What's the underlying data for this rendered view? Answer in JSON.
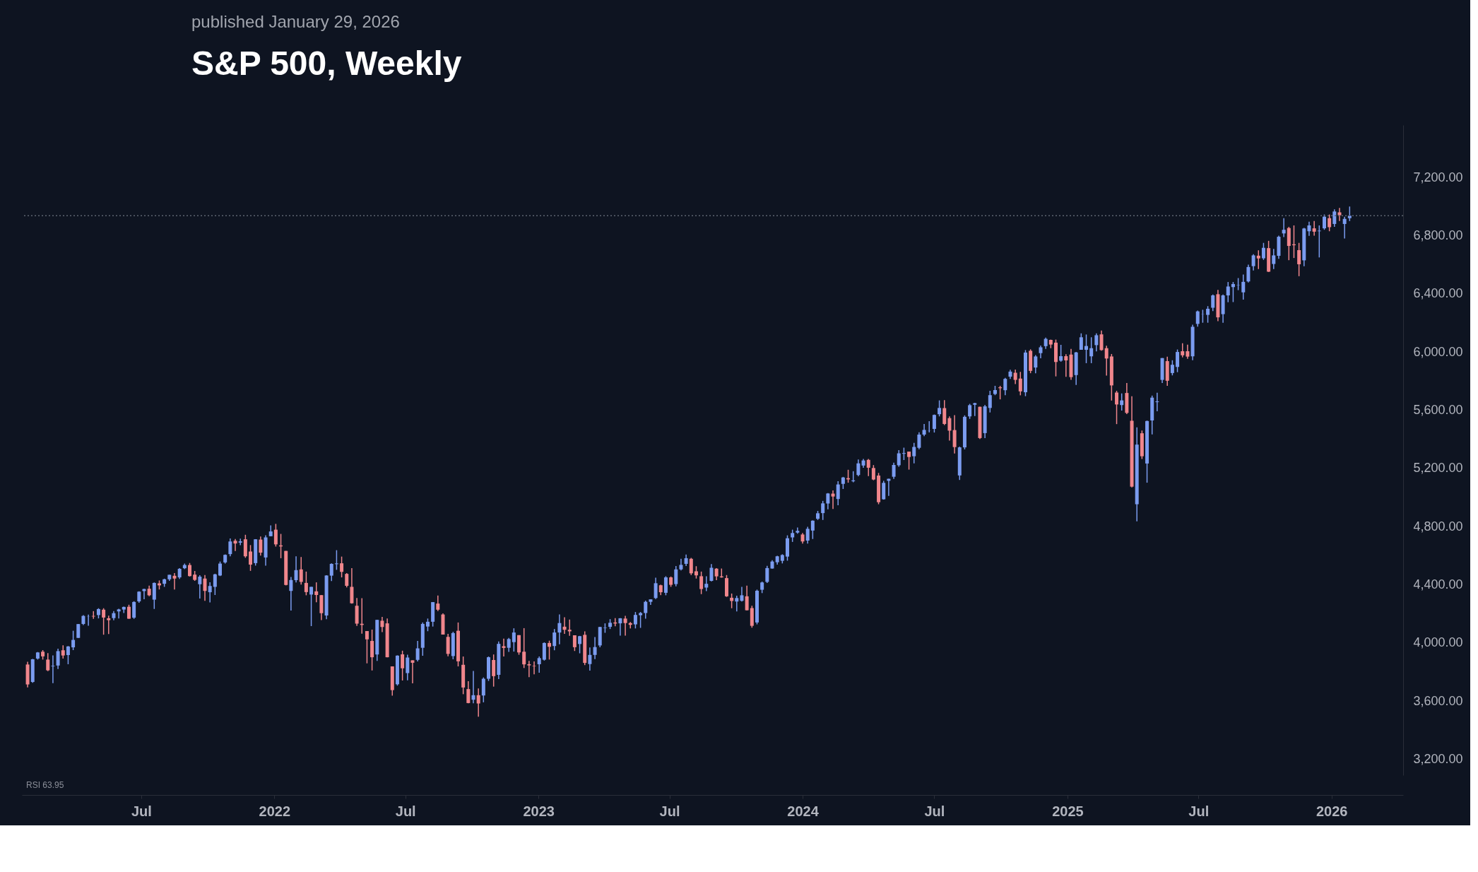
{
  "chart_data": {
    "type": "candlestick",
    "title": "S&P 500, Weekly",
    "subtitle": "published January 29, 2026",
    "annotations": [
      "RSI 63.95"
    ],
    "xlim": [
      "2021-01-22",
      "2026-04-05"
    ],
    "xticks": [
      {
        "value": "2021-07-01",
        "label": "Jul"
      },
      {
        "value": "2022-01-01",
        "label": "2022"
      },
      {
        "value": "2022-07-01",
        "label": "Jul"
      },
      {
        "value": "2023-01-01",
        "label": "2023"
      },
      {
        "value": "2023-07-01",
        "label": "Jul"
      },
      {
        "value": "2024-01-01",
        "label": "2024"
      },
      {
        "value": "2024-07-01",
        "label": "Jul"
      },
      {
        "value": "2025-01-01",
        "label": "2025"
      },
      {
        "value": "2025-07-01",
        "label": "Jul"
      },
      {
        "value": "2026-01-01",
        "label": "2026"
      }
    ],
    "ylim": [
      3090,
      7560
    ],
    "yticks": [
      {
        "value": 3200,
        "label": "3,200.00"
      },
      {
        "value": 3600,
        "label": "3,600.00"
      },
      {
        "value": 4000,
        "label": "4,000.00"
      },
      {
        "value": 4400,
        "label": "4,400.00"
      },
      {
        "value": 4800,
        "label": "4,800.00"
      },
      {
        "value": 5200,
        "label": "5,200.00"
      },
      {
        "value": 5600,
        "label": "5,600.00"
      },
      {
        "value": 6000,
        "label": "6,000.00"
      },
      {
        "value": 6400,
        "label": "6,400.00"
      },
      {
        "value": 6800,
        "label": "6,800.00"
      },
      {
        "value": 7200,
        "label": "7,200.00"
      }
    ],
    "ref_lines": [
      {
        "axis": "y",
        "value": 6937,
        "label": null,
        "color": "#5d6470",
        "line_style": "dotted"
      }
    ],
    "x": [
      "2021-01-25",
      "2021-02-01",
      "2021-02-08",
      "2021-02-15",
      "2021-02-22",
      "2021-03-01",
      "2021-03-08",
      "2021-03-15",
      "2021-03-22",
      "2021-03-29",
      "2021-04-05",
      "2021-04-12",
      "2021-04-19",
      "2021-04-26",
      "2021-05-03",
      "2021-05-10",
      "2021-05-17",
      "2021-05-24",
      "2021-05-31",
      "2021-06-07",
      "2021-06-14",
      "2021-06-21",
      "2021-06-28",
      "2021-07-05",
      "2021-07-12",
      "2021-07-19",
      "2021-07-26",
      "2021-08-02",
      "2021-08-09",
      "2021-08-16",
      "2021-08-23",
      "2021-08-30",
      "2021-09-06",
      "2021-09-13",
      "2021-09-20",
      "2021-09-27",
      "2021-10-04",
      "2021-10-11",
      "2021-10-18",
      "2021-10-25",
      "2021-11-01",
      "2021-11-08",
      "2021-11-15",
      "2021-11-22",
      "2021-11-29",
      "2021-12-06",
      "2021-12-13",
      "2021-12-20",
      "2021-12-27",
      "2022-01-03",
      "2022-01-10",
      "2022-01-17",
      "2022-01-24",
      "2022-01-31",
      "2022-02-07",
      "2022-02-14",
      "2022-02-21",
      "2022-02-28",
      "2022-03-07",
      "2022-03-14",
      "2022-03-21",
      "2022-03-28",
      "2022-04-04",
      "2022-04-11",
      "2022-04-18",
      "2022-04-25",
      "2022-05-02",
      "2022-05-09",
      "2022-05-16",
      "2022-05-23",
      "2022-05-30",
      "2022-06-06",
      "2022-06-13",
      "2022-06-20",
      "2022-06-27",
      "2022-07-04",
      "2022-07-11",
      "2022-07-18",
      "2022-07-25",
      "2022-08-01",
      "2022-08-08",
      "2022-08-15",
      "2022-08-22",
      "2022-08-29",
      "2022-09-05",
      "2022-09-12",
      "2022-09-19",
      "2022-09-26",
      "2022-10-03",
      "2022-10-10",
      "2022-10-17",
      "2022-10-24",
      "2022-10-31",
      "2022-11-07",
      "2022-11-14",
      "2022-11-21",
      "2022-11-28",
      "2022-12-05",
      "2022-12-12",
      "2022-12-19",
      "2022-12-26",
      "2023-01-02",
      "2023-01-09",
      "2023-01-16",
      "2023-01-23",
      "2023-01-30",
      "2023-02-06",
      "2023-02-13",
      "2023-02-20",
      "2023-02-27",
      "2023-03-06",
      "2023-03-13",
      "2023-03-20",
      "2023-03-27",
      "2023-04-03",
      "2023-04-10",
      "2023-04-17",
      "2023-04-24",
      "2023-05-01",
      "2023-05-08",
      "2023-05-15",
      "2023-05-22",
      "2023-05-29",
      "2023-06-05",
      "2023-06-12",
      "2023-06-19",
      "2023-06-26",
      "2023-07-03",
      "2023-07-10",
      "2023-07-17",
      "2023-07-24",
      "2023-07-31",
      "2023-08-07",
      "2023-08-14",
      "2023-08-21",
      "2023-08-28",
      "2023-09-04",
      "2023-09-11",
      "2023-09-18",
      "2023-09-25",
      "2023-10-02",
      "2023-10-09",
      "2023-10-16",
      "2023-10-23",
      "2023-10-30",
      "2023-11-06",
      "2023-11-13",
      "2023-11-20",
      "2023-11-27",
      "2023-12-04",
      "2023-12-11",
      "2023-12-18",
      "2023-12-25",
      "2024-01-01",
      "2024-01-08",
      "2024-01-15",
      "2024-01-22",
      "2024-01-29",
      "2024-02-05",
      "2024-02-12",
      "2024-02-19",
      "2024-02-26",
      "2024-03-04",
      "2024-03-11",
      "2024-03-18",
      "2024-03-25",
      "2024-04-01",
      "2024-04-08",
      "2024-04-15",
      "2024-04-22",
      "2024-04-29",
      "2024-05-06",
      "2024-05-13",
      "2024-05-20",
      "2024-05-27",
      "2024-06-03",
      "2024-06-10",
      "2024-06-17",
      "2024-06-24",
      "2024-07-01",
      "2024-07-08",
      "2024-07-15",
      "2024-07-22",
      "2024-07-29",
      "2024-08-05",
      "2024-08-12",
      "2024-08-19",
      "2024-08-26",
      "2024-09-02",
      "2024-09-09",
      "2024-09-16",
      "2024-09-23",
      "2024-09-30",
      "2024-10-07",
      "2024-10-14",
      "2024-10-21",
      "2024-10-28",
      "2024-11-04",
      "2024-11-11",
      "2024-11-18",
      "2024-11-25",
      "2024-12-02",
      "2024-12-09",
      "2024-12-16",
      "2024-12-23",
      "2024-12-30",
      "2025-01-06",
      "2025-01-13",
      "2025-01-20",
      "2025-01-27",
      "2025-02-03",
      "2025-02-10",
      "2025-02-17",
      "2025-02-24",
      "2025-03-03",
      "2025-03-10",
      "2025-03-17",
      "2025-03-24",
      "2025-03-31",
      "2025-04-07",
      "2025-04-14",
      "2025-04-21",
      "2025-04-28",
      "2025-05-05",
      "2025-05-12",
      "2025-05-19",
      "2025-05-26",
      "2025-06-02",
      "2025-06-09",
      "2025-06-16",
      "2025-06-23",
      "2025-06-30",
      "2025-07-07",
      "2025-07-14",
      "2025-07-21",
      "2025-07-28",
      "2025-08-04",
      "2025-08-11",
      "2025-08-18",
      "2025-08-25",
      "2025-09-01",
      "2025-09-08",
      "2025-09-15",
      "2025-09-22",
      "2025-09-29",
      "2025-10-06",
      "2025-10-13",
      "2025-10-20",
      "2025-10-27",
      "2025-11-03",
      "2025-11-10",
      "2025-11-17",
      "2025-11-24",
      "2025-12-01",
      "2025-12-08",
      "2025-12-15",
      "2025-12-22",
      "2025-12-29",
      "2026-01-05",
      "2026-01-12",
      "2026-01-19",
      "2026-01-26"
    ],
    "ohlc": [
      [
        3851,
        3870,
        3694,
        3714
      ],
      [
        3731,
        3889,
        3725,
        3887
      ],
      [
        3892,
        3937,
        3885,
        3934
      ],
      [
        3939,
        3950,
        3885,
        3907
      ],
      [
        3885,
        3929,
        3805,
        3811
      ],
      [
        3838,
        3914,
        3723,
        3842
      ],
      [
        3844,
        3960,
        3820,
        3943
      ],
      [
        3949,
        3983,
        3892,
        3913
      ],
      [
        3916,
        3978,
        3853,
        3975
      ],
      [
        3969,
        4083,
        3950,
        4020
      ],
      [
        4034,
        4130,
        4034,
        4129
      ],
      [
        4130,
        4191,
        4122,
        4185
      ],
      [
        4179,
        4194,
        4118,
        4180
      ],
      [
        4185,
        4218,
        4165,
        4181
      ],
      [
        4191,
        4238,
        4168,
        4232
      ],
      [
        4228,
        4238,
        4056,
        4174
      ],
      [
        4169,
        4187,
        4061,
        4156
      ],
      [
        4170,
        4218,
        4155,
        4204
      ],
      [
        4216,
        4234,
        4168,
        4230
      ],
      [
        4229,
        4249,
        4205,
        4247
      ],
      [
        4248,
        4262,
        4165,
        4166
      ],
      [
        4173,
        4286,
        4165,
        4281
      ],
      [
        4285,
        4355,
        4276,
        4352
      ],
      [
        4356,
        4372,
        4300,
        4370
      ],
      [
        4372,
        4393,
        4321,
        4327
      ],
      [
        4297,
        4415,
        4233,
        4412
      ],
      [
        4409,
        4429,
        4367,
        4395
      ],
      [
        4406,
        4441,
        4385,
        4437
      ],
      [
        4437,
        4468,
        4426,
        4468
      ],
      [
        4461,
        4480,
        4367,
        4442
      ],
      [
        4450,
        4513,
        4440,
        4509
      ],
      [
        4513,
        4545,
        4507,
        4535
      ],
      [
        4535,
        4549,
        4456,
        4459
      ],
      [
        4469,
        4494,
        4426,
        4433
      ],
      [
        4403,
        4465,
        4305,
        4455
      ],
      [
        4442,
        4466,
        4289,
        4357
      ],
      [
        4348,
        4417,
        4278,
        4391
      ],
      [
        4385,
        4475,
        4329,
        4471
      ],
      [
        4463,
        4559,
        4459,
        4545
      ],
      [
        4553,
        4608,
        4545,
        4605
      ],
      [
        4610,
        4718,
        4595,
        4697
      ],
      [
        4702,
        4714,
        4631,
        4683
      ],
      [
        4689,
        4717,
        4672,
        4698
      ],
      [
        4712,
        4743,
        4585,
        4595
      ],
      [
        4628,
        4672,
        4495,
        4538
      ],
      [
        4548,
        4713,
        4531,
        4712
      ],
      [
        4710,
        4731,
        4600,
        4620
      ],
      [
        4587,
        4740,
        4531,
        4725
      ],
      [
        4733,
        4808,
        4733,
        4766
      ],
      [
        4778,
        4818,
        4662,
        4677
      ],
      [
        4670,
        4749,
        4582,
        4663
      ],
      [
        4632,
        4632,
        4395,
        4398
      ],
      [
        4357,
        4453,
        4222,
        4432
      ],
      [
        4431,
        4595,
        4415,
        4500
      ],
      [
        4505,
        4590,
        4401,
        4419
      ],
      [
        4412,
        4490,
        4327,
        4349
      ],
      [
        4332,
        4385,
        4115,
        4385
      ],
      [
        4354,
        4416,
        4279,
        4329
      ],
      [
        4328,
        4329,
        4157,
        4204
      ],
      [
        4188,
        4465,
        4162,
        4463
      ],
      [
        4462,
        4546,
        4425,
        4543
      ],
      [
        4541,
        4637,
        4502,
        4546
      ],
      [
        4547,
        4593,
        4450,
        4488
      ],
      [
        4474,
        4480,
        4381,
        4392
      ],
      [
        4385,
        4513,
        4270,
        4272
      ],
      [
        4255,
        4308,
        4117,
        4132
      ],
      [
        4131,
        4307,
        4063,
        4123
      ],
      [
        4081,
        4081,
        3859,
        4024
      ],
      [
        4013,
        4091,
        3810,
        3901
      ],
      [
        3920,
        4159,
        3876,
        4158
      ],
      [
        4152,
        4178,
        4074,
        4109
      ],
      [
        4134,
        4168,
        3900,
        3901
      ],
      [
        3838,
        3838,
        3637,
        3675
      ],
      [
        3715,
        3914,
        3706,
        3912
      ],
      [
        3921,
        3946,
        3741,
        3825
      ],
      [
        3792,
        3919,
        3742,
        3899
      ],
      [
        3880,
        3880,
        3722,
        3863
      ],
      [
        3883,
        4013,
        3872,
        3962
      ],
      [
        3966,
        4140,
        3911,
        4130
      ],
      [
        4112,
        4167,
        4080,
        4145
      ],
      [
        4145,
        4280,
        4112,
        4280
      ],
      [
        4270,
        4325,
        4218,
        4228
      ],
      [
        4195,
        4203,
        4057,
        4057
      ],
      [
        4041,
        4062,
        3907,
        3924
      ],
      [
        3909,
        4076,
        3887,
        4067
      ],
      [
        4083,
        4140,
        3838,
        3873
      ],
      [
        3849,
        3906,
        3647,
        3693
      ],
      [
        3682,
        3736,
        3584,
        3586
      ],
      [
        3609,
        3807,
        3584,
        3640
      ],
      [
        3640,
        3686,
        3492,
        3583
      ],
      [
        3638,
        3762,
        3591,
        3753
      ],
      [
        3753,
        3906,
        3738,
        3901
      ],
      [
        3882,
        3920,
        3699,
        3771
      ],
      [
        3780,
        4009,
        3751,
        3993
      ],
      [
        3977,
        4029,
        3906,
        3965
      ],
      [
        3966,
        4034,
        3938,
        4026
      ],
      [
        4005,
        4100,
        3940,
        4071
      ],
      [
        4053,
        4053,
        3918,
        3934
      ],
      [
        3939,
        4101,
        3827,
        3852
      ],
      [
        3853,
        3876,
        3764,
        3845
      ],
      [
        3843,
        3872,
        3783,
        3840
      ],
      [
        3853,
        3906,
        3795,
        3895
      ],
      [
        3884,
        4003,
        3878,
        3999
      ],
      [
        3999,
        4015,
        3885,
        3973
      ],
      [
        3978,
        4095,
        3949,
        4071
      ],
      [
        4071,
        4195,
        3990,
        4136
      ],
      [
        4111,
        4176,
        4062,
        4090
      ],
      [
        4090,
        4160,
        4048,
        4079
      ],
      [
        4052,
        4052,
        3944,
        3970
      ],
      [
        3992,
        4048,
        3928,
        4046
      ],
      [
        4055,
        4079,
        3847,
        3862
      ],
      [
        3854,
        3968,
        3809,
        3917
      ],
      [
        3917,
        4040,
        3888,
        3971
      ],
      [
        3982,
        4110,
        3970,
        4109
      ],
      [
        4102,
        4134,
        4069,
        4105
      ],
      [
        4110,
        4163,
        4095,
        4138
      ],
      [
        4140,
        4170,
        4114,
        4133
      ],
      [
        4134,
        4170,
        4049,
        4169
      ],
      [
        4167,
        4186,
        4049,
        4136
      ],
      [
        4136,
        4143,
        4099,
        4124
      ],
      [
        4127,
        4212,
        4099,
        4192
      ],
      [
        4190,
        4212,
        4103,
        4205
      ],
      [
        4205,
        4290,
        4166,
        4282
      ],
      [
        4282,
        4299,
        4261,
        4299
      ],
      [
        4308,
        4448,
        4301,
        4410
      ],
      [
        4396,
        4400,
        4328,
        4348
      ],
      [
        4344,
        4458,
        4327,
        4450
      ],
      [
        4450,
        4456,
        4385,
        4399
      ],
      [
        4404,
        4528,
        4389,
        4505
      ],
      [
        4505,
        4578,
        4498,
        4536
      ],
      [
        4543,
        4607,
        4528,
        4582
      ],
      [
        4578,
        4584,
        4466,
        4478
      ],
      [
        4492,
        4527,
        4442,
        4464
      ],
      [
        4458,
        4490,
        4335,
        4370
      ],
      [
        4380,
        4458,
        4356,
        4406
      ],
      [
        4426,
        4541,
        4423,
        4516
      ],
      [
        4510,
        4514,
        4431,
        4457
      ],
      [
        4457,
        4511,
        4448,
        4450
      ],
      [
        4445,
        4466,
        4316,
        4320
      ],
      [
        4310,
        4339,
        4238,
        4288
      ],
      [
        4284,
        4324,
        4216,
        4308
      ],
      [
        4289,
        4385,
        4284,
        4327
      ],
      [
        4320,
        4393,
        4223,
        4224
      ],
      [
        4239,
        4255,
        4104,
        4117
      ],
      [
        4140,
        4366,
        4127,
        4358
      ],
      [
        4365,
        4421,
        4342,
        4415
      ],
      [
        4419,
        4529,
        4411,
        4514
      ],
      [
        4511,
        4568,
        4510,
        4559
      ],
      [
        4554,
        4599,
        4538,
        4595
      ],
      [
        4564,
        4609,
        4546,
        4604
      ],
      [
        4593,
        4739,
        4565,
        4719
      ],
      [
        4725,
        4778,
        4694,
        4755
      ],
      [
        4758,
        4793,
        4751,
        4770
      ],
      [
        4745,
        4755,
        4682,
        4697
      ],
      [
        4703,
        4798,
        4682,
        4784
      ],
      [
        4772,
        4842,
        4714,
        4840
      ],
      [
        4853,
        4907,
        4845,
        4891
      ],
      [
        4892,
        4976,
        4845,
        4959
      ],
      [
        4958,
        5030,
        4918,
        5027
      ],
      [
        5026,
        5048,
        4920,
        5006
      ],
      [
        4989,
        5111,
        4946,
        5089
      ],
      [
        5093,
        5141,
        5058,
        5137
      ],
      [
        5132,
        5190,
        5101,
        5124
      ],
      [
        5111,
        5180,
        5104,
        5117
      ],
      [
        5154,
        5261,
        5145,
        5234
      ],
      [
        5219,
        5264,
        5204,
        5254
      ],
      [
        5258,
        5264,
        5146,
        5204
      ],
      [
        5202,
        5222,
        5118,
        5123
      ],
      [
        5150,
        5168,
        4953,
        4967
      ],
      [
        4987,
        5114,
        4985,
        5100
      ],
      [
        5114,
        5128,
        5011,
        5128
      ],
      [
        5142,
        5239,
        5127,
        5223
      ],
      [
        5221,
        5325,
        5211,
        5303
      ],
      [
        5300,
        5342,
        5257,
        5305
      ],
      [
        5315,
        5315,
        5191,
        5278
      ],
      [
        5283,
        5375,
        5234,
        5347
      ],
      [
        5341,
        5448,
        5331,
        5432
      ],
      [
        5432,
        5505,
        5421,
        5464
      ],
      [
        5459,
        5524,
        5447,
        5460
      ],
      [
        5471,
        5570,
        5446,
        5567
      ],
      [
        5572,
        5667,
        5557,
        5615
      ],
      [
        5614,
        5669,
        5497,
        5505
      ],
      [
        5545,
        5557,
        5391,
        5459
      ],
      [
        5463,
        5566,
        5302,
        5346
      ],
      [
        5151,
        5349,
        5120,
        5344
      ],
      [
        5344,
        5564,
        5330,
        5554
      ],
      [
        5557,
        5643,
        5540,
        5634
      ],
      [
        5637,
        5651,
        5560,
        5648
      ],
      [
        5623,
        5624,
        5402,
        5408
      ],
      [
        5442,
        5636,
        5407,
        5626
      ],
      [
        5615,
        5733,
        5584,
        5703
      ],
      [
        5711,
        5767,
        5703,
        5738
      ],
      [
        5757,
        5767,
        5674,
        5751
      ],
      [
        5737,
        5822,
        5703,
        5815
      ],
      [
        5830,
        5878,
        5815,
        5865
      ],
      [
        5857,
        5879,
        5779,
        5808
      ],
      [
        5817,
        5863,
        5702,
        5729
      ],
      [
        5723,
        6013,
        5696,
        5996
      ],
      [
        6008,
        6018,
        5854,
        5870
      ],
      [
        5893,
        5978,
        5853,
        5969
      ],
      [
        5992,
        6044,
        5957,
        6032
      ],
      [
        6040,
        6099,
        6021,
        6090
      ],
      [
        6083,
        6085,
        6026,
        6051
      ],
      [
        6064,
        6085,
        5832,
        5931
      ],
      [
        5940,
        6049,
        5933,
        5971
      ],
      [
        5971,
        5985,
        5829,
        5942
      ],
      [
        5982,
        6021,
        5809,
        5827
      ],
      [
        5841,
        6000,
        5773,
        5997
      ],
      [
        6015,
        6128,
        6015,
        6101
      ],
      [
        6015,
        6120,
        5923,
        6041
      ],
      [
        5970,
        6101,
        5923,
        6026
      ],
      [
        6047,
        6128,
        6004,
        6115
      ],
      [
        6121,
        6147,
        6009,
        6013
      ],
      [
        6026,
        6043,
        5838,
        5955
      ],
      [
        5969,
        5986,
        5666,
        5770
      ],
      [
        5721,
        5733,
        5504,
        5639
      ],
      [
        5635,
        5715,
        5597,
        5667
      ],
      [
        5718,
        5787,
        5573,
        5581
      ],
      [
        5527,
        5695,
        5069,
        5074
      ],
      [
        4953,
        5482,
        4835,
        5363
      ],
      [
        5441,
        5460,
        5264,
        5283
      ],
      [
        5233,
        5528,
        5101,
        5525
      ],
      [
        5529,
        5700,
        5433,
        5686
      ],
      [
        5655,
        5720,
        5592,
        5660
      ],
      [
        5808,
        5958,
        5786,
        5958
      ],
      [
        5937,
        5968,
        5767,
        5802
      ],
      [
        5855,
        5943,
        5839,
        5912
      ],
      [
        5897,
        6017,
        5861,
        6000
      ],
      [
        6005,
        6060,
        5963,
        5977
      ],
      [
        6005,
        6050,
        5953,
        5968
      ],
      [
        5970,
        6187,
        5943,
        6173
      ],
      [
        6193,
        6284,
        6174,
        6279
      ],
      [
        6259,
        6290,
        6201,
        6260
      ],
      [
        6255,
        6315,
        6201,
        6297
      ],
      [
        6304,
        6395,
        6281,
        6389
      ],
      [
        6397,
        6427,
        6212,
        6238
      ],
      [
        6260,
        6395,
        6201,
        6389
      ],
      [
        6389,
        6481,
        6342,
        6450
      ],
      [
        6446,
        6481,
        6343,
        6467
      ],
      [
        6458,
        6508,
        6425,
        6460
      ],
      [
        6410,
        6532,
        6360,
        6482
      ],
      [
        6485,
        6600,
        6478,
        6584
      ],
      [
        6590,
        6672,
        6560,
        6664
      ],
      [
        6662,
        6699,
        6570,
        6643
      ],
      [
        6644,
        6750,
        6633,
        6716
      ],
      [
        6714,
        6764,
        6550,
        6552
      ],
      [
        6605,
        6709,
        6570,
        6664
      ],
      [
        6661,
        6800,
        6640,
        6792
      ],
      [
        6815,
        6920,
        6790,
        6840
      ],
      [
        6852,
        6860,
        6631,
        6729
      ],
      [
        6740,
        6870,
        6646,
        6734
      ],
      [
        6700,
        6750,
        6521,
        6603
      ],
      [
        6630,
        6853,
        6590,
        6849
      ],
      [
        6830,
        6895,
        6799,
        6870
      ],
      [
        6850,
        6901,
        6800,
        6827
      ],
      [
        6830,
        6870,
        6650,
        6834
      ],
      [
        6850,
        6945,
        6840,
        6930
      ],
      [
        6920,
        6945,
        6830,
        6858
      ],
      [
        6880,
        6980,
        6860,
        6966
      ],
      [
        6960,
        6990,
        6900,
        6940
      ],
      [
        6880,
        6930,
        6780,
        6915
      ],
      [
        6920,
        7000,
        6900,
        6937
      ]
    ]
  }
}
